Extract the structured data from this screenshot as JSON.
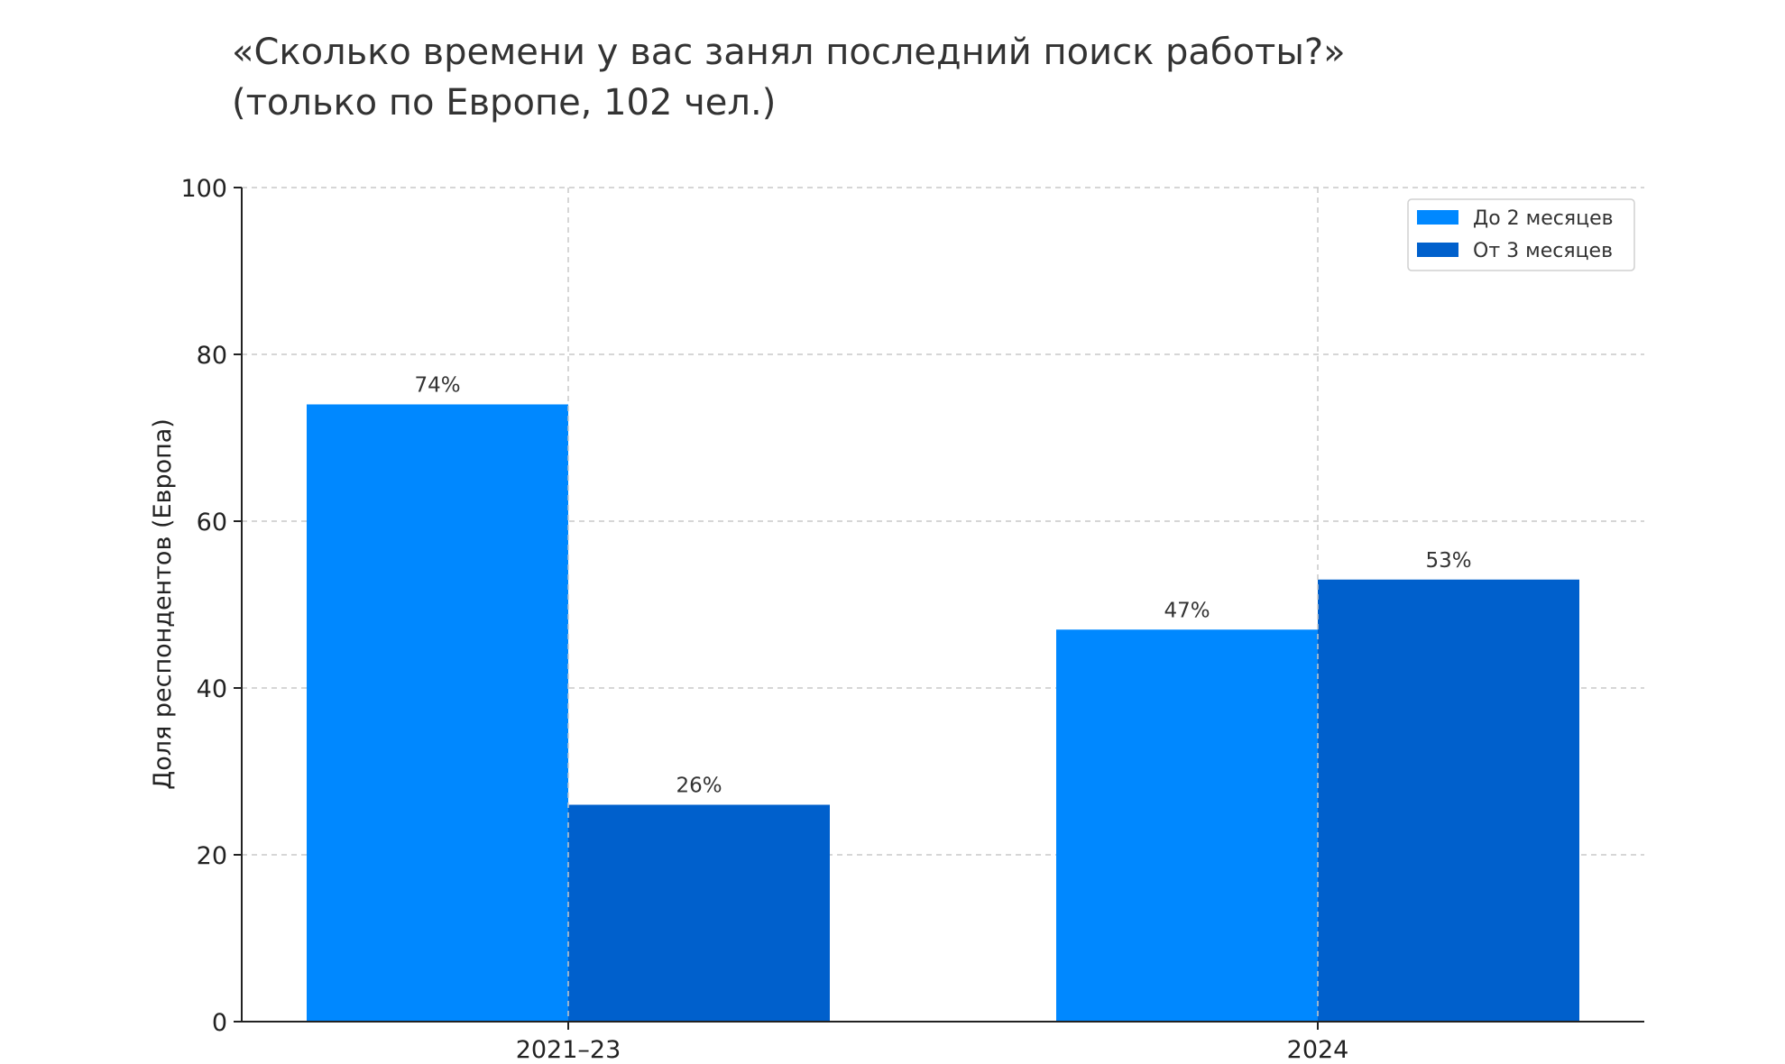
{
  "chart_data": {
    "type": "bar",
    "title": "«Сколько времени у вас занял последний поиск работы?»",
    "subtitle": "(только по Европе, 102 чел.)",
    "xlabel": "",
    "ylabel": "Доля респондентов (Европа)",
    "categories": [
      "2021–23",
      "2024"
    ],
    "series": [
      {
        "name": "До 2 месяцев",
        "values": [
          74,
          47
        ],
        "labels": [
          "74%",
          "47%"
        ],
        "color": "#0088ff"
      },
      {
        "name": "От 3 месяцев",
        "values": [
          26,
          53
        ],
        "labels": [
          "26%",
          "53%"
        ],
        "color": "#0060cc"
      }
    ],
    "ylim": [
      0,
      100
    ],
    "yticks": [
      "0",
      "20",
      "40",
      "60",
      "80",
      "100"
    ],
    "grid": true,
    "legend_position": "top-right"
  }
}
